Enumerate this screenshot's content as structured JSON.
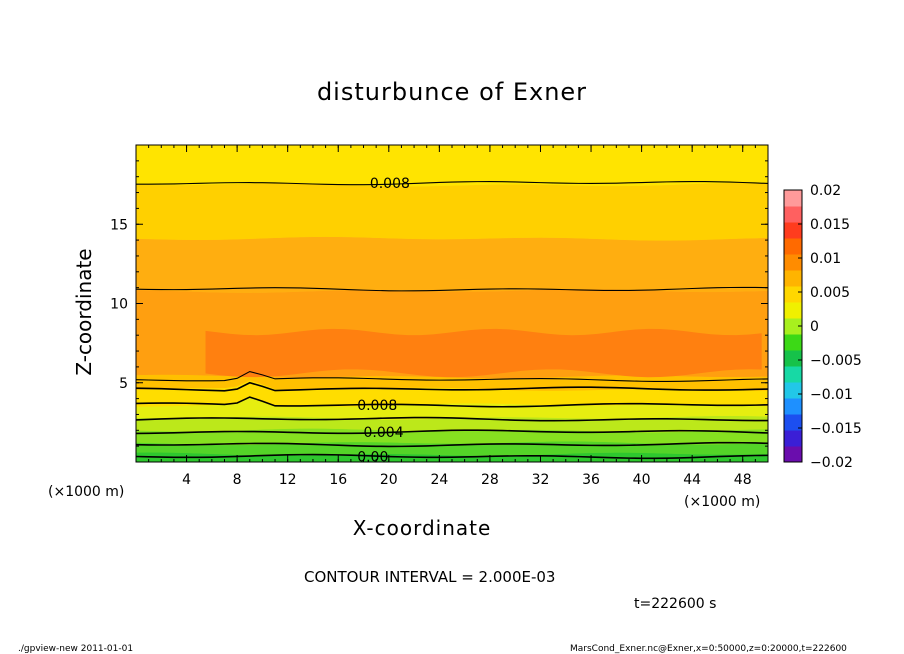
{
  "chart_data": {
    "type": "heatmap",
    "title": "disturbunce of Exner",
    "xlabel": "X-coordinate",
    "ylabel": "Z-coordinate",
    "x_unit": "(×1000 m)",
    "y_unit": "(×1000 m)",
    "xlim": [
      0,
      50
    ],
    "ylim": [
      0,
      20
    ],
    "x_ticks": [
      4,
      8,
      12,
      16,
      20,
      24,
      28,
      32,
      36,
      40,
      44,
      48
    ],
    "y_ticks": [
      5,
      10,
      15
    ],
    "colorbar": {
      "ticks": [
        "0.02",
        "0.015",
        "0.01",
        "0.005",
        "0",
        "−0.005",
        "−0.01",
        "−0.015",
        "−0.02"
      ],
      "range": [
        -0.02,
        0.02
      ],
      "colors": [
        "#6a0dad",
        "#3b1fd6",
        "#1c4ff0",
        "#1e90ff",
        "#22c7e8",
        "#17d9a5",
        "#16c24a",
        "#3cd916",
        "#a8f01e",
        "#f0f000",
        "#ffd700",
        "#ffb400",
        "#ff8c00",
        "#ff6a00",
        "#ff3c1e",
        "#ff6060",
        "#ff9a9a"
      ]
    },
    "bands": [
      {
        "z_bottom": 0.0,
        "z_top": 0.5,
        "color": "#2ec82e"
      },
      {
        "z_bottom": 0.5,
        "z_top": 1.2,
        "color": "#54d428"
      },
      {
        "z_bottom": 1.2,
        "z_top": 2.0,
        "color": "#86e020"
      },
      {
        "z_bottom": 2.0,
        "z_top": 2.8,
        "color": "#bce81a"
      },
      {
        "z_bottom": 2.8,
        "z_top": 3.6,
        "color": "#e6ee10"
      },
      {
        "z_bottom": 3.6,
        "z_top": 4.6,
        "color": "#ffdd00"
      },
      {
        "z_bottom": 4.6,
        "z_top": 5.4,
        "color": "#ffc000"
      },
      {
        "z_bottom": 5.4,
        "z_top": 10.8,
        "color": "#ff9f10"
      },
      {
        "z_bottom": 10.8,
        "z_top": 14.1,
        "color": "#ffae10"
      },
      {
        "z_bottom": 14.1,
        "z_top": 17.5,
        "color": "#ffd000"
      },
      {
        "z_bottom": 17.5,
        "z_top": 20.0,
        "color": "#ffe400"
      }
    ],
    "core": {
      "x_start": 5.5,
      "x_end": 50,
      "z_bottom": 5.6,
      "z_top": 8.2,
      "color": "#ff8010"
    },
    "contour_levels_z": [
      0.35,
      1.1,
      1.9,
      2.7,
      3.6,
      4.6,
      5.2,
      10.9,
      17.6
    ],
    "contour_labels": [
      {
        "text": "0.008",
        "x": 18.5,
        "z": 17.6
      },
      {
        "text": "0.008",
        "x": 17.5,
        "z": 3.6
      },
      {
        "text": "0.004",
        "x": 18.0,
        "z": 1.9
      },
      {
        "text": "0.00",
        "x": 17.5,
        "z": 0.35
      }
    ],
    "contour_interval": "CONTOUR INTERVAL = 2.000E-03",
    "time": "t=222600 s"
  },
  "footer": {
    "left": "./gpview-new   2011-01-01",
    "right": "MarsCond_Exner.nc@Exner,x=0:50000,z=0:20000,t=222600"
  }
}
